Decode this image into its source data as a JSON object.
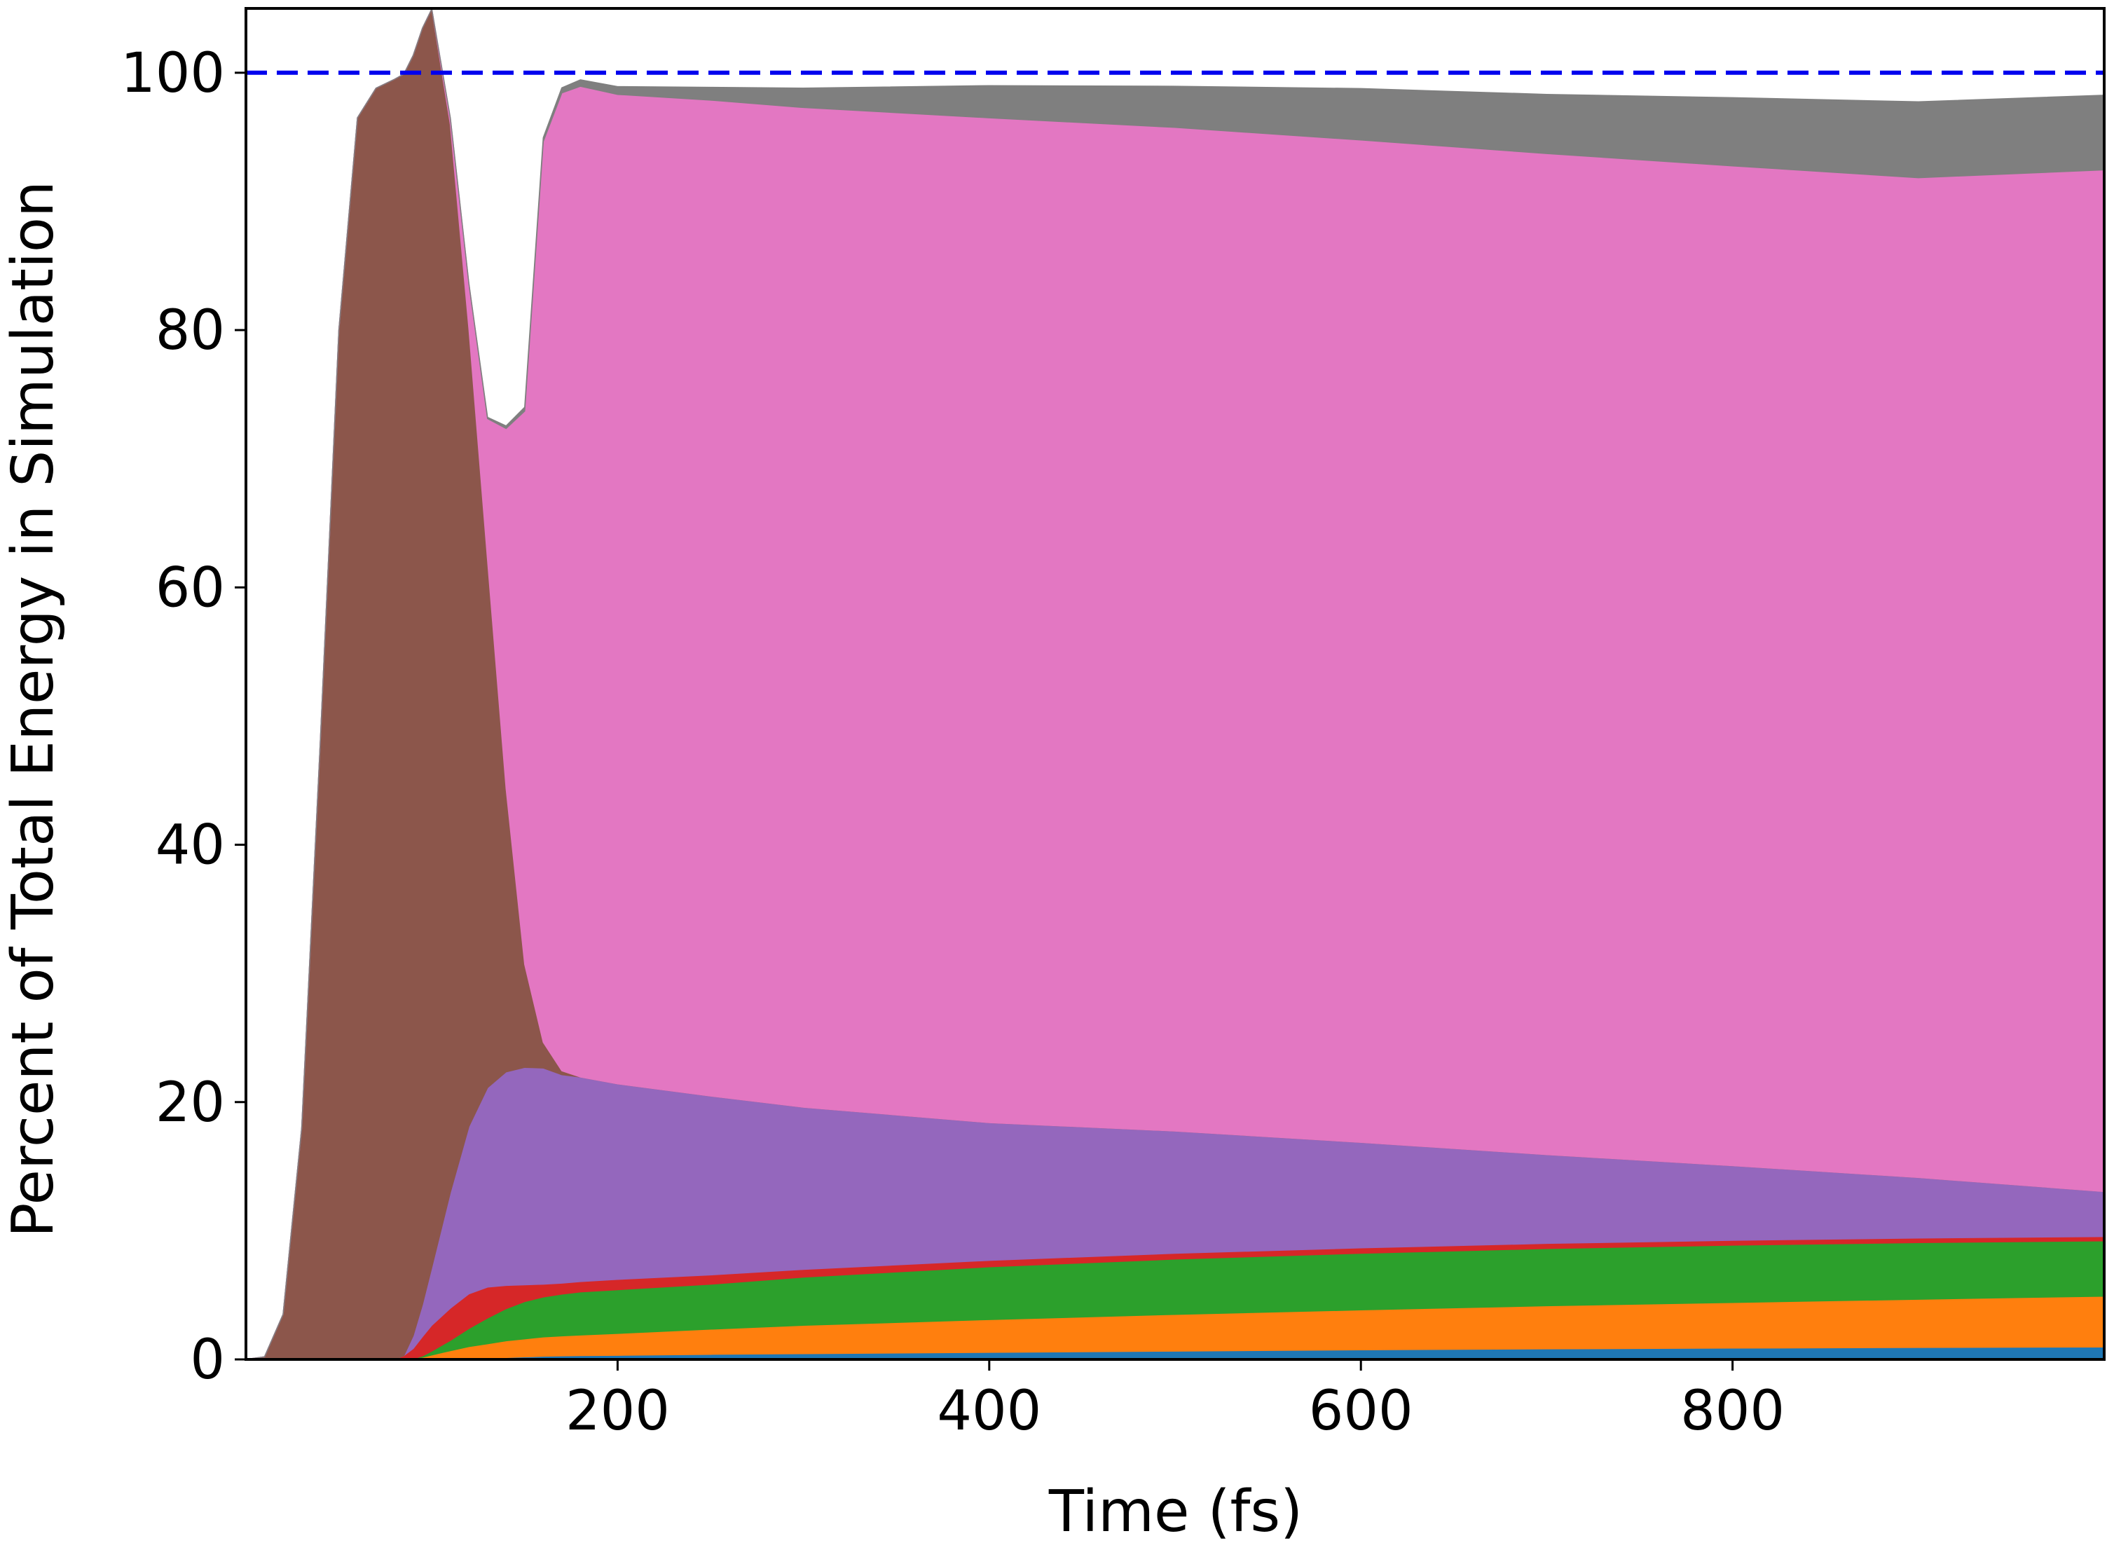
{
  "chart_data": {
    "type": "area",
    "stacked": true,
    "title": "",
    "xlabel": "Time (fs)",
    "ylabel": "Percent of Total Energy in Simulation",
    "xlim": [
      0,
      1000
    ],
    "ylim": [
      0,
      105
    ],
    "xticks": [
      200,
      400,
      600,
      800
    ],
    "yticks": [
      0,
      20,
      40,
      60,
      80,
      100
    ],
    "grid": false,
    "legend": "none",
    "reference_line": {
      "y": 100,
      "style": "dashed",
      "color": "#0000ee"
    },
    "x": [
      0,
      10,
      20,
      30,
      40,
      50,
      60,
      70,
      80,
      85,
      90,
      95,
      100,
      110,
      120,
      130,
      140,
      150,
      160,
      170,
      180,
      200,
      250,
      300,
      400,
      500,
      600,
      700,
      800,
      900,
      1000
    ],
    "series": [
      {
        "color": "#1f77b4",
        "values": [
          0,
          0,
          0,
          0,
          0,
          0,
          0,
          0,
          0,
          0,
          0,
          0.02,
          0.05,
          0.08,
          0.1,
          0.12,
          0.15,
          0.2,
          0.25,
          0.28,
          0.3,
          0.32,
          0.4,
          0.45,
          0.55,
          0.65,
          0.75,
          0.82,
          0.88,
          0.93,
          0.97
        ]
      },
      {
        "color": "#ff7f0e",
        "values": [
          0,
          0,
          0,
          0,
          0,
          0,
          0,
          0,
          0,
          0,
          0.05,
          0.15,
          0.3,
          0.6,
          0.9,
          1.1,
          1.3,
          1.4,
          1.5,
          1.55,
          1.6,
          1.7,
          1.95,
          2.2,
          2.55,
          2.85,
          3.1,
          3.35,
          3.55,
          3.75,
          3.95
        ]
      },
      {
        "color": "#2ca02c",
        "values": [
          0,
          0,
          0,
          0,
          0,
          0,
          0,
          0,
          0,
          0,
          0,
          0.1,
          0.3,
          0.8,
          1.4,
          2.0,
          2.5,
          2.9,
          3.1,
          3.25,
          3.35,
          3.4,
          3.5,
          3.75,
          4.1,
          4.3,
          4.4,
          4.45,
          4.45,
          4.4,
          4.3
        ]
      },
      {
        "color": "#d62728",
        "values": [
          0,
          0,
          0,
          0,
          0,
          0,
          0,
          0,
          0,
          0.3,
          0.8,
          1.5,
          2.0,
          2.5,
          2.7,
          2.4,
          1.8,
          1.3,
          1.0,
          0.85,
          0.8,
          0.8,
          0.72,
          0.6,
          0.5,
          0.45,
          0.42,
          0.4,
          0.38,
          0.36,
          0.33
        ]
      },
      {
        "color": "#9467bd",
        "values": [
          0,
          0,
          0,
          0,
          0,
          0,
          0,
          0,
          0,
          0,
          1.0,
          2.5,
          4.5,
          9.0,
          13.0,
          15.5,
          16.6,
          16.9,
          16.8,
          16.2,
          15.9,
          15.2,
          13.9,
          12.6,
          10.7,
          9.5,
          8.2,
          6.9,
          5.8,
          4.7,
          3.5
        ]
      },
      {
        "color": "#8c564b",
        "values": [
          0,
          0.2,
          3.5,
          18.0,
          48.0,
          80.0,
          96.5,
          98.8,
          99.5,
          99.6,
          99.5,
          99.2,
          97.8,
          83.0,
          62.0,
          41.0,
          22.0,
          8.0,
          2.0,
          0.3,
          0,
          0,
          0,
          0,
          0,
          0,
          0,
          0,
          0,
          0,
          0
        ]
      },
      {
        "color": "#e377c2",
        "values": [
          0,
          0,
          0,
          0,
          0,
          0,
          0,
          0,
          0,
          0,
          0,
          0,
          0,
          0.5,
          3.5,
          11.0,
          28.0,
          43.0,
          70.0,
          76.0,
          77.0,
          76.9,
          77.4,
          77.7,
          78.1,
          78.0,
          77.9,
          77.8,
          77.7,
          77.7,
          79.4
        ]
      },
      {
        "color": "#7f7f7f",
        "values": [
          0,
          0,
          0,
          0,
          0,
          0,
          0,
          0,
          0,
          0,
          0,
          0,
          0,
          0,
          0,
          0.1,
          0.2,
          0.3,
          0.3,
          0.4,
          0.5,
          0.6,
          1.0,
          1.5,
          2.5,
          3.2,
          4.0,
          4.6,
          5.3,
          5.9,
          5.8
        ]
      }
    ]
  }
}
